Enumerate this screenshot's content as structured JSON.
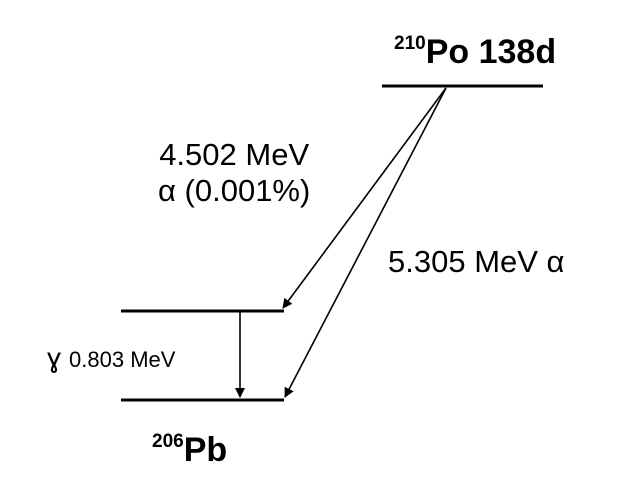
{
  "parent": {
    "mass_number": "210",
    "symbol": "Po",
    "half_life": "138d"
  },
  "daughter": {
    "mass_number": "206",
    "symbol": "Pb"
  },
  "transitions": {
    "alpha_minor": {
      "energy": "4.502  MeV",
      "label": "α (0.001%)"
    },
    "alpha_major": {
      "label": "5.305 MeV α"
    },
    "gamma": {
      "symbol": "ɣ",
      "energy": "0.803 MeV"
    }
  }
}
